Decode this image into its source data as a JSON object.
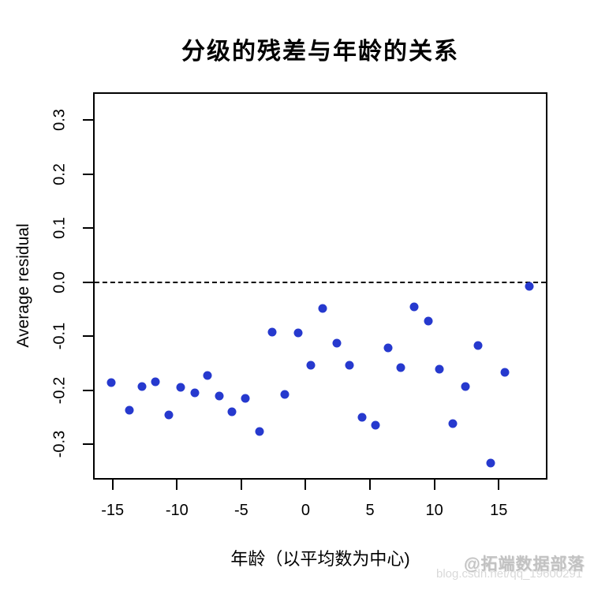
{
  "colors": {
    "point": "#2639CE",
    "axis": "#000000",
    "background": "#ffffff",
    "watermark_dark": "#c2c2c2",
    "watermark_light": "#d9d9d9"
  },
  "watermark": {
    "line1": "@拓端数据部落",
    "line2": "blog.csdn.net/qq_19600291"
  },
  "chart_data": {
    "type": "scatter",
    "title": "分级的残差与年龄的关系",
    "xlabel": "年龄（以平均数为中心)",
    "ylabel": "Average residual",
    "xlim": [
      -16.45,
      18.72
    ],
    "ylim": [
      -0.3635,
      0.35
    ],
    "grid": false,
    "legend": false,
    "reference_line_y": 0.0,
    "reference_line_style": "dashed",
    "x_ticks": [
      {
        "label": "-15",
        "value": -15
      },
      {
        "label": "-10",
        "value": -10
      },
      {
        "label": "-5",
        "value": -5
      },
      {
        "label": "0",
        "value": 0
      },
      {
        "label": "5",
        "value": 5
      },
      {
        "label": "10",
        "value": 10
      },
      {
        "label": "15",
        "value": 15
      }
    ],
    "y_ticks": [
      {
        "label": "0.3",
        "value": 0.3
      },
      {
        "label": "0.2",
        "value": 0.2
      },
      {
        "label": "0.1",
        "value": 0.1
      },
      {
        "label": "0.0",
        "value": 0.0
      },
      {
        "label": "-0.1",
        "value": -0.1
      },
      {
        "label": "-0.2",
        "value": -0.2
      },
      {
        "label": "-0.3",
        "value": -0.3
      }
    ],
    "points": [
      {
        "x": -15.1,
        "y": -0.185
      },
      {
        "x": -13.7,
        "y": -0.236
      },
      {
        "x": -12.7,
        "y": -0.193
      },
      {
        "x": -11.7,
        "y": -0.184
      },
      {
        "x": -10.6,
        "y": -0.245
      },
      {
        "x": -9.7,
        "y": -0.194
      },
      {
        "x": -8.6,
        "y": -0.204
      },
      {
        "x": -7.6,
        "y": -0.173
      },
      {
        "x": -6.7,
        "y": -0.211
      },
      {
        "x": -5.7,
        "y": -0.239
      },
      {
        "x": -4.7,
        "y": -0.215
      },
      {
        "x": -3.6,
        "y": -0.276
      },
      {
        "x": -2.6,
        "y": -0.092
      },
      {
        "x": -1.6,
        "y": -0.207
      },
      {
        "x": -0.6,
        "y": -0.093
      },
      {
        "x": 0.4,
        "y": -0.154
      },
      {
        "x": 1.3,
        "y": -0.049
      },
      {
        "x": 2.4,
        "y": -0.113
      },
      {
        "x": 3.4,
        "y": -0.154
      },
      {
        "x": 4.4,
        "y": -0.25
      },
      {
        "x": 5.4,
        "y": -0.265
      },
      {
        "x": 6.4,
        "y": -0.121
      },
      {
        "x": 7.4,
        "y": -0.158
      },
      {
        "x": 8.4,
        "y": -0.046
      },
      {
        "x": 9.5,
        "y": -0.072
      },
      {
        "x": 10.4,
        "y": -0.161
      },
      {
        "x": 11.4,
        "y": -0.261
      },
      {
        "x": 12.4,
        "y": -0.193
      },
      {
        "x": 13.4,
        "y": -0.117
      },
      {
        "x": 14.4,
        "y": -0.335
      },
      {
        "x": 15.5,
        "y": -0.167
      },
      {
        "x": 17.4,
        "y": -0.008
      }
    ]
  }
}
